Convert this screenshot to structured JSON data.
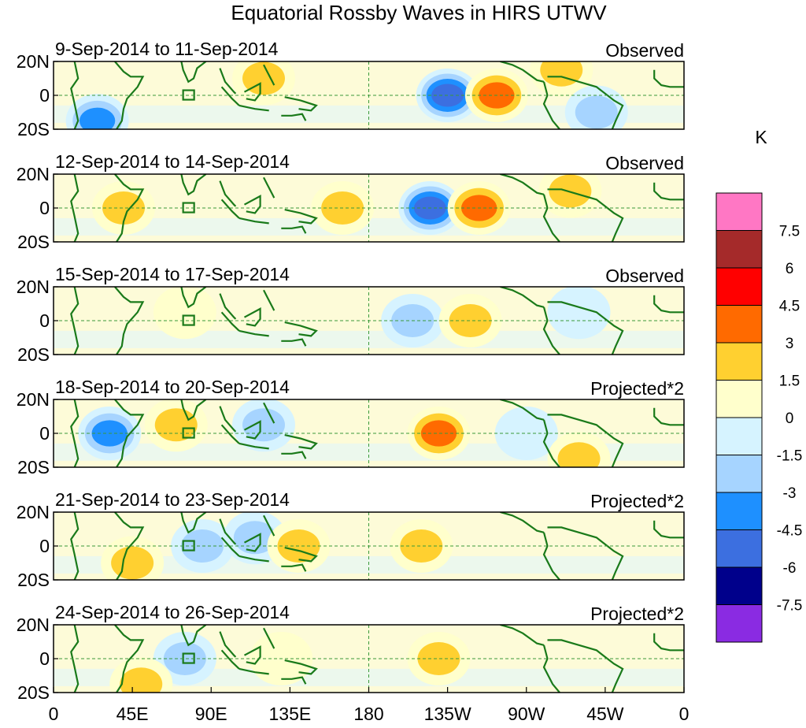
{
  "chart_data": {
    "type": "heatmap",
    "title": "Equatorial Rossby Waves in HIRS UTWV",
    "units": "K",
    "x_ticks": [
      "0",
      "45E",
      "90E",
      "135E",
      "180",
      "135W",
      "90W",
      "45W",
      "0"
    ],
    "y_ticks": [
      "20N",
      "0",
      "20S"
    ],
    "x_range_deg_east": [
      0,
      360
    ],
    "y_range_deg": [
      -20,
      20
    ],
    "panels": [
      {
        "date_label": "9-Sep-2014 to 11-Sep-2014",
        "kind": "Observed",
        "anomalies": [
          {
            "lon": 225,
            "lat": 0,
            "value": -5.5
          },
          {
            "lon": 253,
            "lat": 0,
            "value": 4.0
          },
          {
            "lon": 290,
            "lat": 15,
            "value": 1.8
          },
          {
            "lon": 310,
            "lat": -10,
            "value": -1.6
          },
          {
            "lon": 25,
            "lat": -15,
            "value": -3.2
          },
          {
            "lon": 120,
            "lat": 10,
            "value": 1.5
          }
        ]
      },
      {
        "date_label": "12-Sep-2014 to 14-Sep-2014",
        "kind": "Observed",
        "anomalies": [
          {
            "lon": 215,
            "lat": 0,
            "value": -4.8
          },
          {
            "lon": 243,
            "lat": 0,
            "value": 4.0
          },
          {
            "lon": 40,
            "lat": 0,
            "value": 1.6
          },
          {
            "lon": 165,
            "lat": 0,
            "value": 1.6
          },
          {
            "lon": 295,
            "lat": 10,
            "value": 1.6
          }
        ]
      },
      {
        "date_label": "15-Sep-2014 to 17-Sep-2014",
        "kind": "Observed",
        "anomalies": [
          {
            "lon": 205,
            "lat": 0,
            "value": -1.8
          },
          {
            "lon": 238,
            "lat": 0,
            "value": 2.2
          },
          {
            "lon": 75,
            "lat": 5,
            "value": 0.8
          },
          {
            "lon": 300,
            "lat": 5,
            "value": -1.0
          }
        ]
      },
      {
        "date_label": "18-Sep-2014 to 20-Sep-2014",
        "kind": "Projected*2",
        "anomalies": [
          {
            "lon": 220,
            "lat": 0,
            "value": 4.2
          },
          {
            "lon": 32,
            "lat": 0,
            "value": -3.2
          },
          {
            "lon": 120,
            "lat": 5,
            "value": -2.0
          },
          {
            "lon": 70,
            "lat": 5,
            "value": 1.6
          },
          {
            "lon": 270,
            "lat": 0,
            "value": -1.2
          },
          {
            "lon": 300,
            "lat": -15,
            "value": 2.0
          }
        ]
      },
      {
        "date_label": "21-Sep-2014 to 23-Sep-2014",
        "kind": "Projected*2",
        "anomalies": [
          {
            "lon": 210,
            "lat": 0,
            "value": 1.8
          },
          {
            "lon": 85,
            "lat": 0,
            "value": -2.0
          },
          {
            "lon": 115,
            "lat": 5,
            "value": -1.5
          },
          {
            "lon": 45,
            "lat": -10,
            "value": 1.6
          },
          {
            "lon": 140,
            "lat": 0,
            "value": 1.5
          }
        ]
      },
      {
        "date_label": "24-Sep-2014 to 26-Sep-2014",
        "kind": "Projected*2",
        "anomalies": [
          {
            "lon": 75,
            "lat": 0,
            "value": -2.0
          },
          {
            "lon": 220,
            "lat": 0,
            "value": 1.6
          },
          {
            "lon": 50,
            "lat": -15,
            "value": 1.6
          },
          {
            "lon": 130,
            "lat": 0,
            "value": 1.2
          }
        ]
      }
    ],
    "colorbar": {
      "labels": [
        "7.5",
        "6",
        "4.5",
        "3",
        "1.5",
        "0",
        "-1.5",
        "-3",
        "-4.5",
        "-6",
        "-7.5"
      ],
      "levels": [
        7.5,
        6,
        4.5,
        3,
        1.5,
        0,
        -1.5,
        -3,
        -4.5,
        -6,
        -7.5
      ],
      "colors": [
        "#ff77c4",
        "#a52a2a",
        "#ff0000",
        "#ff6a00",
        "#ffd030",
        "#ffffcc",
        "#d6f3ff",
        "#a6d4ff",
        "#1e90ff",
        "#3c6fe0",
        "#00008b",
        "#8a2be2"
      ]
    }
  }
}
